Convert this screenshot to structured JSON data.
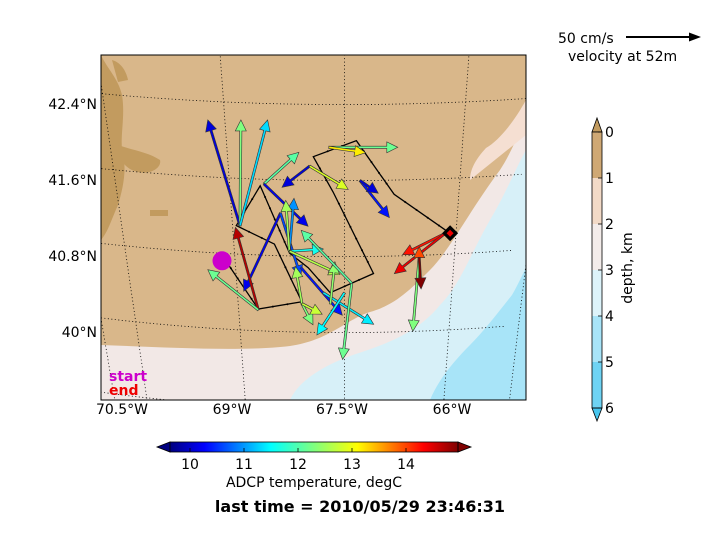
{
  "chart_data": {
    "type": "quiver-map",
    "map": {
      "lon_ticks": [
        "70.5°W",
        "69°W",
        "67.5°W",
        "66°W"
      ],
      "lat_ticks": [
        "42.4°N",
        "41.6°N",
        "40.8°N",
        "40°N"
      ],
      "start_label": "start",
      "end_label": "end",
      "start_marker": {
        "lon": -69.18,
        "lat": 40.72
      },
      "end_marker": {
        "lon": -66.08,
        "lat": 41.02
      }
    },
    "scale_arrow": {
      "label_speed": "50 cm/s",
      "label_depth": "velocity at 52m"
    },
    "track": [
      [
        -69.15,
        40.75
      ],
      [
        -68.72,
        40.23
      ],
      [
        -68.1,
        40.32
      ],
      [
        -68.45,
        40.92
      ],
      [
        -68.95,
        41.1
      ],
      [
        -68.6,
        41.53
      ],
      [
        -68.25,
        40.83
      ],
      [
        -68.0,
        40.68
      ],
      [
        -67.7,
        40.42
      ],
      [
        -67.1,
        40.62
      ],
      [
        -67.65,
        41.48
      ],
      [
        -67.9,
        41.85
      ],
      [
        -67.35,
        42.02
      ],
      [
        -66.85,
        41.45
      ],
      [
        -66.08,
        41.02
      ]
    ],
    "vectors": [
      {
        "lon": -68.9,
        "lat": 41.1,
        "u": -0.35,
        "v": 1.0,
        "t": 10.0
      },
      {
        "lon": -68.9,
        "lat": 41.1,
        "u": 0.01,
        "v": 1.0,
        "t": 12.3
      },
      {
        "lon": -68.9,
        "lat": 41.1,
        "u": 0.3,
        "v": 1.0,
        "t": 11.4
      },
      {
        "lon": -68.55,
        "lat": 41.55,
        "u": 0.38,
        "v": 0.3,
        "t": 12.1
      },
      {
        "lon": -68.55,
        "lat": 41.55,
        "u": 0.48,
        "v": -0.4,
        "t": 10.1
      },
      {
        "lon": -68.35,
        "lat": 41.25,
        "u": -0.4,
        "v": -0.74,
        "t": 10.1
      },
      {
        "lon": -68.35,
        "lat": 41.25,
        "u": 0.22,
        "v": -0.6,
        "t": 10.6
      },
      {
        "lon": -68.25,
        "lat": 40.85,
        "u": 0.05,
        "v": 0.5,
        "t": 11.0
      },
      {
        "lon": -68.25,
        "lat": 40.85,
        "u": -0.04,
        "v": 0.48,
        "t": 12.5
      },
      {
        "lon": -68.25,
        "lat": 40.85,
        "u": 0.37,
        "v": 0.02,
        "t": 11.7
      },
      {
        "lon": -68.25,
        "lat": 40.85,
        "u": 0.55,
        "v": -0.22,
        "t": 12.6
      },
      {
        "lon": -68.1,
        "lat": 40.68,
        "u": 0.45,
        "v": -0.45,
        "t": 10.3
      },
      {
        "lon": -67.8,
        "lat": 40.42,
        "u": 0.55,
        "v": -0.3,
        "t": 11.5
      },
      {
        "lon": -67.7,
        "lat": 40.3,
        "u": 0.05,
        "v": 0.4,
        "t": 12.4
      },
      {
        "lon": -67.5,
        "lat": 40.42,
        "u": -0.3,
        "v": -0.4,
        "t": 11.6
      },
      {
        "lon": -67.4,
        "lat": 40.52,
        "u": -0.1,
        "v": -0.72,
        "t": 12.2
      },
      {
        "lon": -67.4,
        "lat": 40.52,
        "u": -0.55,
        "v": 0.5,
        "t": 12.1
      },
      {
        "lon": -68.72,
        "lat": 40.22,
        "u": -0.25,
        "v": 0.78,
        "t": 14.8
      },
      {
        "lon": -68.72,
        "lat": 40.22,
        "u": -0.55,
        "v": 0.38,
        "t": 12.2
      },
      {
        "lon": -68.1,
        "lat": 40.3,
        "u": -0.07,
        "v": 0.35,
        "t": 12.5
      },
      {
        "lon": -68.1,
        "lat": 40.3,
        "u": 0.12,
        "v": -0.2,
        "t": 12.3
      },
      {
        "lon": -68.1,
        "lat": 40.3,
        "u": 0.22,
        "v": -0.1,
        "t": 12.7
      },
      {
        "lon": -67.95,
        "lat": 41.75,
        "u": -0.3,
        "v": -0.2,
        "t": 10.0
      },
      {
        "lon": -67.95,
        "lat": 41.75,
        "u": 0.42,
        "v": -0.22,
        "t": 12.8
      },
      {
        "lon": -67.7,
        "lat": 41.95,
        "u": 0.75,
        "v": 0.0,
        "t": 12.2
      },
      {
        "lon": -67.7,
        "lat": 41.95,
        "u": 0.4,
        "v": -0.05,
        "t": 13.1
      },
      {
        "lon": -67.3,
        "lat": 41.6,
        "u": 0.32,
        "v": -0.35,
        "t": 10.3
      },
      {
        "lon": -67.3,
        "lat": 41.6,
        "u": 0.2,
        "v": -0.12,
        "t": 10.0
      },
      {
        "lon": -66.15,
        "lat": 41.02,
        "u": -0.46,
        "v": -0.2,
        "t": 14.3
      },
      {
        "lon": -66.15,
        "lat": 41.02,
        "u": -0.55,
        "v": -0.38,
        "t": 14.5
      },
      {
        "lon": -66.48,
        "lat": 40.78,
        "u": -0.07,
        "v": -0.7,
        "t": 12.3
      },
      {
        "lon": -66.48,
        "lat": 40.78,
        "u": 0.02,
        "v": -0.3,
        "t": 15.2
      },
      {
        "lon": -66.48,
        "lat": 40.78,
        "u": 0.0,
        "v": 0.1,
        "t": 14.0
      }
    ],
    "colorbar_temperature": {
      "label": "ADCP temperature, degC",
      "ticks": [
        "10",
        "11",
        "12",
        "13",
        "14"
      ],
      "range": [
        9.5,
        15.1
      ]
    },
    "colorbar_depth": {
      "label": "depth, km",
      "ticks": [
        "0",
        "1",
        "2",
        "3",
        "4",
        "5",
        "6"
      ],
      "range": [
        0,
        6
      ]
    },
    "time_label": "last time = 2010/05/29 23:46:31",
    "colors": {
      "land": "#d9b78a",
      "land_dark": "#c29b5f",
      "shelf": "#f2e8e6",
      "slope": "#f4dccd",
      "deep": "#d7f0f8",
      "abyss": "#a8e4f8",
      "track": "#000000",
      "start_marker": "#cc00cc",
      "end_marker": "#ee0000"
    }
  }
}
